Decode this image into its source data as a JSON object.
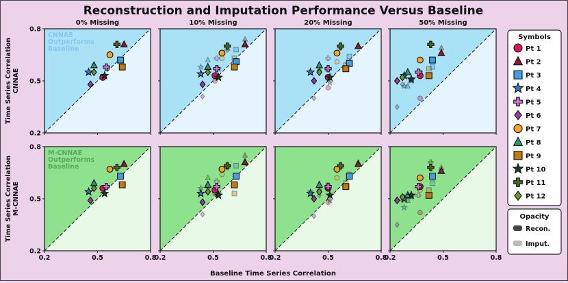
{
  "chart_data": {
    "type": "scatter",
    "title": "Reconstruction and Imputation Performance Versus Baseline",
    "xlabel": "Baseline Time Series Correlation",
    "columns": [
      "0% Missing",
      "10% Missing",
      "20% Missing",
      "50% Missing"
    ],
    "rows": [
      {
        "ylabel_line1": "Time Series Correlation",
        "ylabel_line2": "CNNAE",
        "region_label_line1": "CNNAE",
        "region_label_line2": "Outperforms",
        "region_label_line3": "Baseline",
        "upper_color": "#a9e2f7",
        "lower_color": "#e6f5fd",
        "text_color": "#87c6ee"
      },
      {
        "ylabel_line1": "Time Series Correlation",
        "ylabel_line2": "M-CNNAE",
        "region_label_line1": "M-CNNAE",
        "region_label_line2": "Outperforms",
        "region_label_line3": "Baseline",
        "upper_color": "#8ee28e",
        "lower_color": "#e8f9e8",
        "text_color": "#5aaa5a"
      }
    ],
    "xlim": [
      0.2,
      0.8
    ],
    "ylim": [
      0.2,
      0.8
    ],
    "xticks": [
      "0.2",
      "0.5",
      "0.8"
    ],
    "yticks": [
      "0.2",
      "0.5",
      "0.8"
    ],
    "reference_line": "y = x",
    "patients": [
      {
        "name": "Pt 1",
        "marker": "circle",
        "color": "#d6185e"
      },
      {
        "name": "Pt 2",
        "marker": "triangle",
        "color": "#8e1a2c"
      },
      {
        "name": "Pt 3",
        "marker": "square",
        "color": "#3ea1e8"
      },
      {
        "name": "Pt 4",
        "marker": "star",
        "color": "#2a7ed6"
      },
      {
        "name": "Pt 5",
        "marker": "plus",
        "color": "#d472d4"
      },
      {
        "name": "Pt 6",
        "marker": "diamond",
        "color": "#9a3aa0"
      },
      {
        "name": "Pt 7",
        "marker": "circle",
        "color": "#f5a521"
      },
      {
        "name": "Pt 8",
        "marker": "triangle",
        "color": "#2c9a7e"
      },
      {
        "name": "Pt 9",
        "marker": "square",
        "color": "#c27c0e"
      },
      {
        "name": "Pt 10",
        "marker": "star",
        "color": "#1b3d2a"
      },
      {
        "name": "Pt 11",
        "marker": "plus",
        "color": "#4d6b1e"
      },
      {
        "name": "Pt 12",
        "marker": "diamond",
        "color": "#6a9a24"
      }
    ],
    "baseline": [
      [
        0.53,
        0.65,
        0.63,
        0.45,
        0.55,
        0.46,
        0.57,
        0.48,
        0.64,
        0.54,
        0.61,
        0.48
      ],
      [
        0.51,
        0.68,
        0.63,
        0.43,
        0.52,
        0.44,
        0.55,
        0.47,
        0.62,
        0.53,
        0.58,
        0.47
      ],
      [
        0.5,
        0.67,
        0.62,
        0.4,
        0.5,
        0.42,
        0.55,
        0.45,
        0.6,
        0.51,
        0.57,
        0.45
      ],
      [
        0.37,
        0.49,
        0.44,
        0.28,
        0.36,
        0.24,
        0.37,
        0.3,
        0.42,
        0.32,
        0.43,
        0.27
      ]
    ],
    "series": [
      {
        "row": "CNNAE",
        "column": "0% Missing",
        "reconstruction": [
          0.52,
          0.71,
          0.62,
          0.55,
          0.58,
          0.48,
          0.65,
          0.59,
          0.58,
          0.53,
          0.71,
          0.55
        ],
        "imputation": null
      },
      {
        "row": "CNNAE",
        "column": "10% Missing",
        "reconstruction": [
          0.53,
          0.71,
          0.61,
          0.54,
          0.57,
          0.48,
          0.66,
          0.58,
          0.58,
          0.52,
          0.7,
          0.55
        ],
        "imputation": [
          0.5,
          0.74,
          0.68,
          0.58,
          0.63,
          0.41,
          0.63,
          0.62,
          0.63,
          0.57,
          0.68,
          0.58
        ]
      },
      {
        "row": "CNNAE",
        "column": "20% Missing",
        "reconstruction": [
          0.52,
          0.7,
          0.6,
          0.55,
          0.57,
          0.5,
          0.66,
          0.59,
          0.57,
          0.52,
          0.7,
          0.55
        ],
        "imputation": [
          0.46,
          0.7,
          0.64,
          0.55,
          0.63,
          0.4,
          0.61,
          0.57,
          0.59,
          0.49,
          0.69,
          0.55
        ]
      },
      {
        "row": "CNNAE",
        "column": "50% Missing",
        "reconstruction": [
          0.53,
          0.66,
          0.62,
          0.53,
          0.55,
          0.5,
          0.62,
          0.55,
          0.53,
          0.51,
          0.71,
          0.52
        ],
        "imputation": [
          0.4,
          0.69,
          0.58,
          0.47,
          0.55,
          0.35,
          0.55,
          0.47,
          0.57,
          0.5,
          0.71,
          0.48
        ]
      },
      {
        "row": "M-CNNAE",
        "column": "0% Missing",
        "reconstruction": [
          0.56,
          0.7,
          0.63,
          0.54,
          0.57,
          0.49,
          0.67,
          0.59,
          0.58,
          0.53,
          0.68,
          0.56
        ],
        "imputation": null
      },
      {
        "row": "M-CNNAE",
        "column": "10% Missing",
        "reconstruction": [
          0.55,
          0.71,
          0.63,
          0.53,
          0.57,
          0.48,
          0.67,
          0.58,
          0.58,
          0.52,
          0.69,
          0.54
        ],
        "imputation": [
          0.53,
          0.75,
          0.69,
          0.56,
          0.6,
          0.41,
          0.64,
          0.62,
          0.53,
          0.53,
          0.68,
          0.56
        ]
      },
      {
        "row": "M-CNNAE",
        "column": "20% Missing",
        "reconstruction": [
          0.56,
          0.7,
          0.63,
          0.53,
          0.57,
          0.5,
          0.67,
          0.58,
          0.57,
          0.52,
          0.69,
          0.54
        ],
        "imputation": [
          0.48,
          0.71,
          0.64,
          0.54,
          0.58,
          0.4,
          0.62,
          0.56,
          0.59,
          0.49,
          0.68,
          0.52
        ]
      },
      {
        "row": "M-CNNAE",
        "column": "50% Missing",
        "reconstruction": [
          0.57,
          0.66,
          0.63,
          0.5,
          0.57,
          0.49,
          0.62,
          0.52,
          0.52,
          0.52,
          0.68,
          0.51
        ],
        "imputation": [
          0.42,
          0.68,
          0.59,
          0.45,
          0.52,
          0.35,
          0.55,
          0.49,
          0.55,
          0.51,
          0.71,
          0.49
        ]
      }
    ],
    "legend": {
      "symbols_title": "Symbols",
      "opacity_title": "Opacity",
      "recon_label": "Recon.",
      "imput_label": "Imput.",
      "placement": "right"
    }
  }
}
